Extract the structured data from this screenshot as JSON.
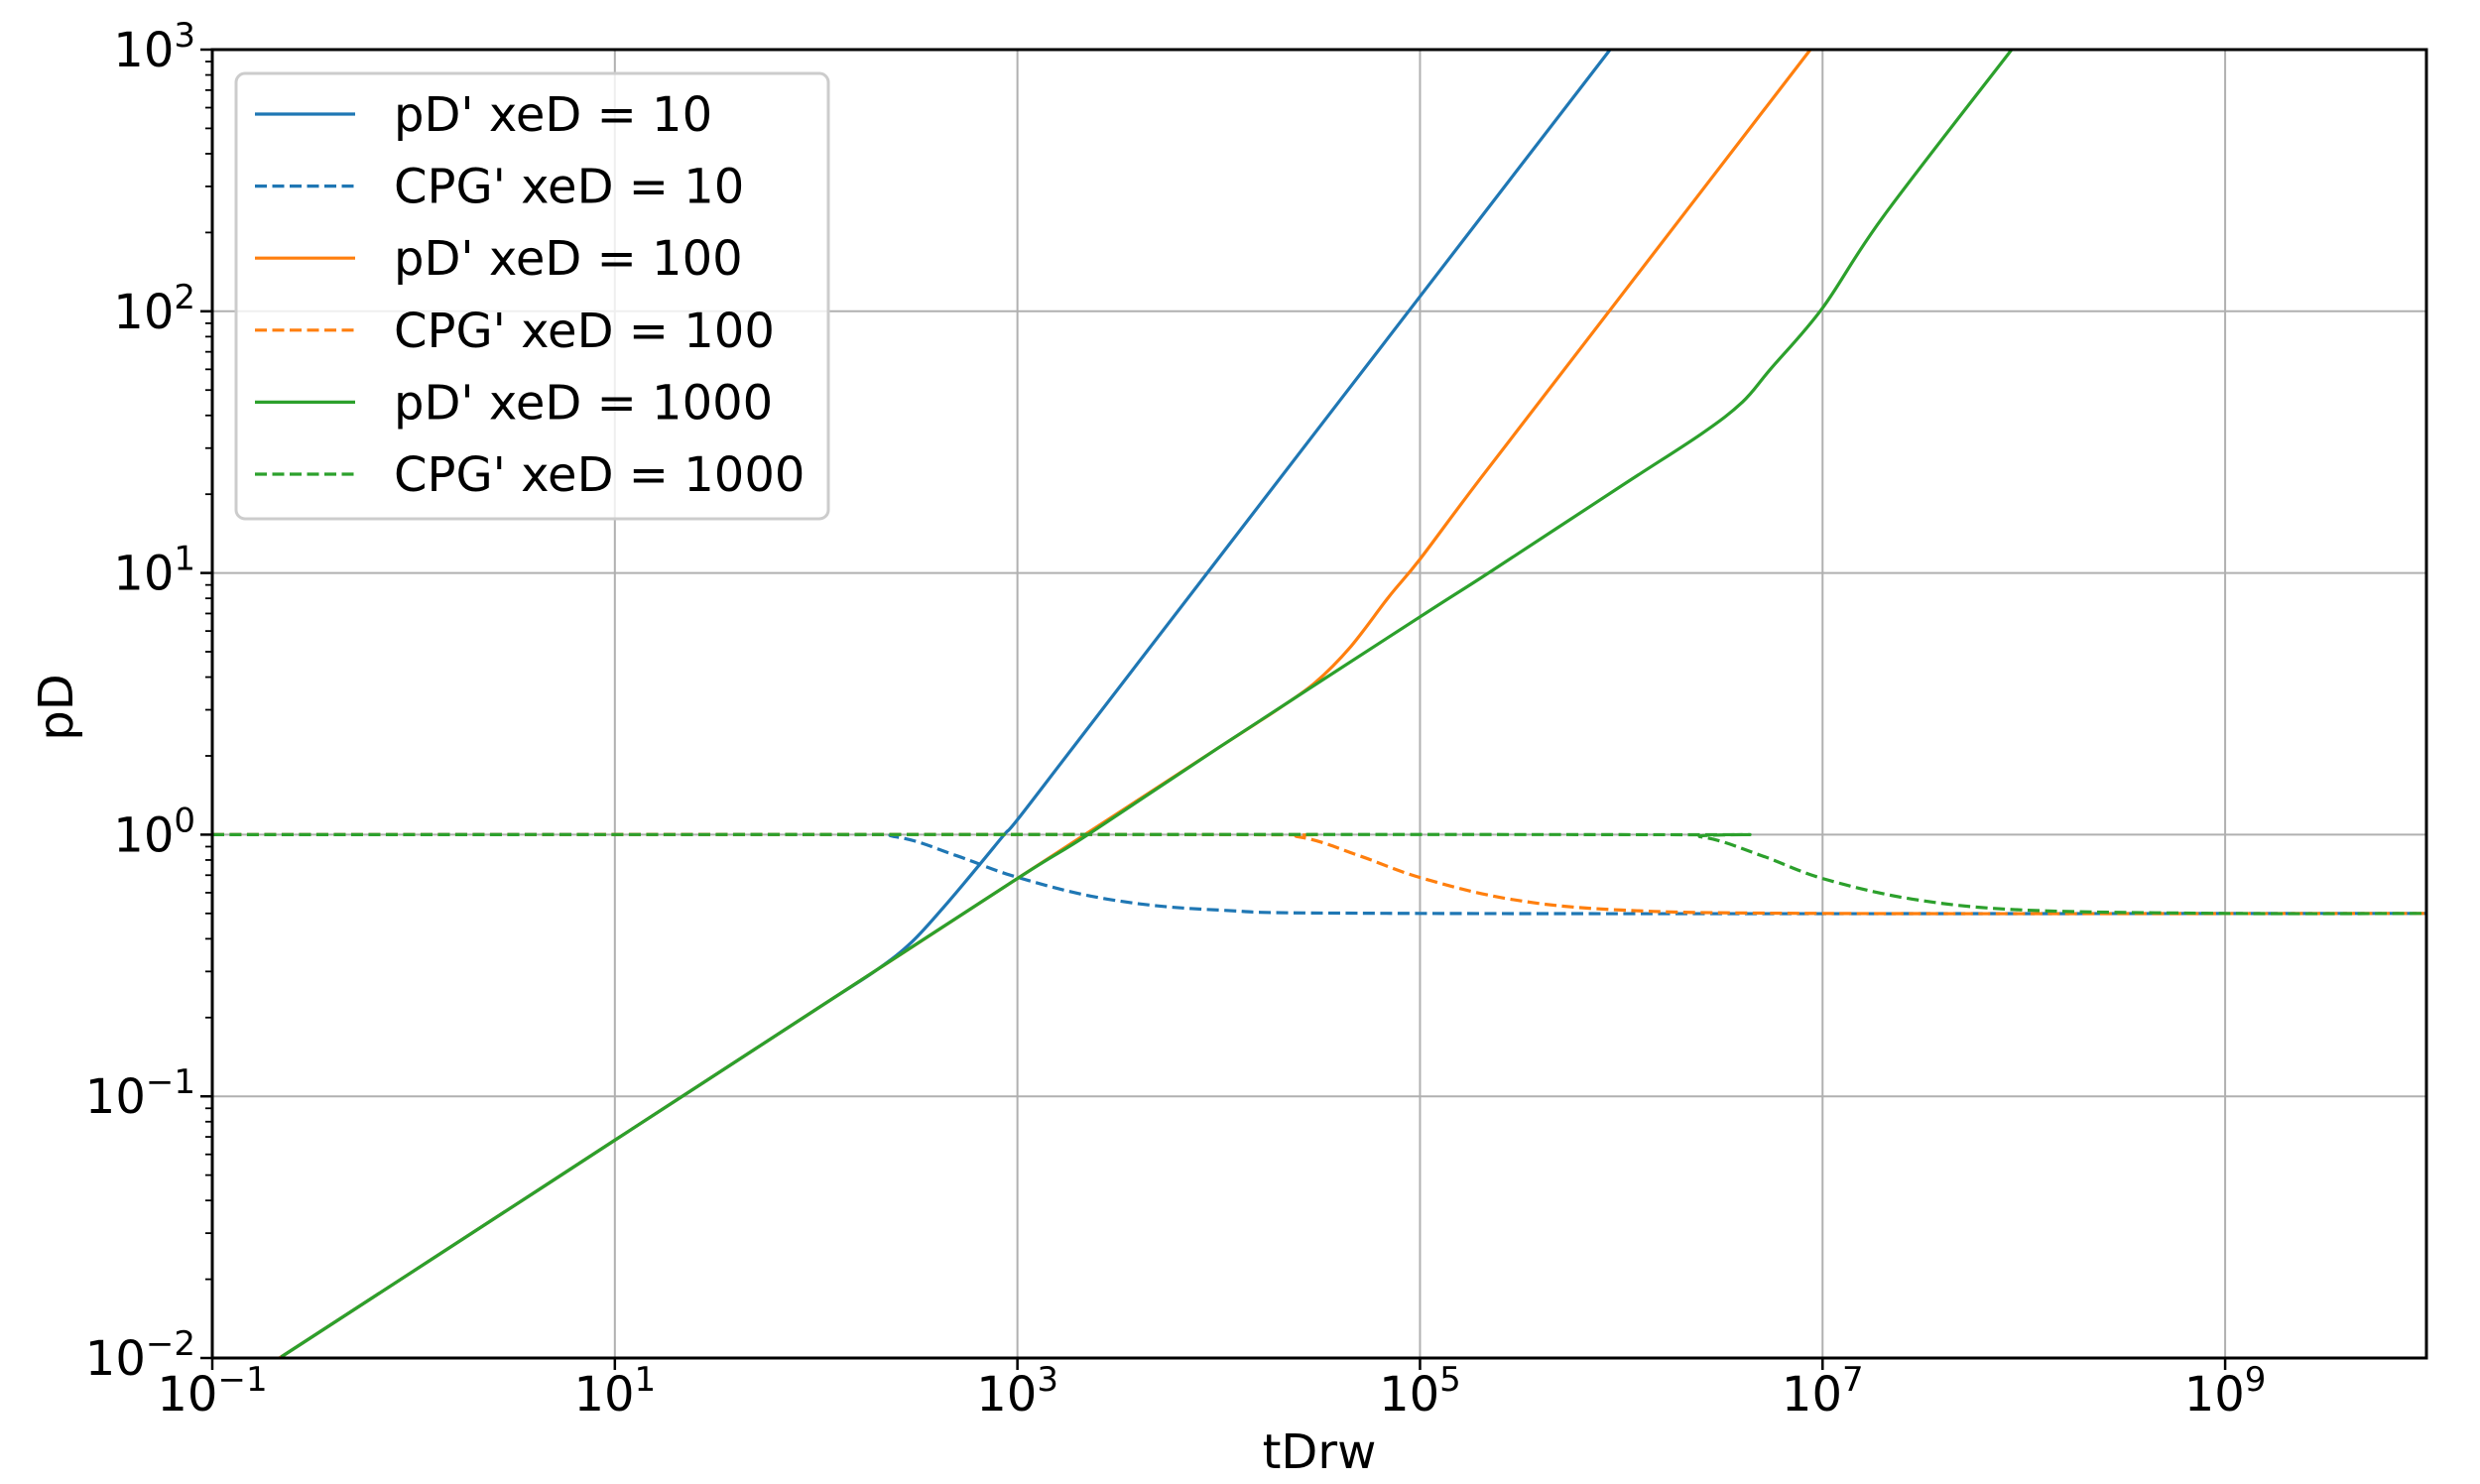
{
  "chart_data": {
    "type": "line",
    "title": "",
    "xlabel": "tDrw",
    "ylabel": "pD",
    "xscale": "log",
    "yscale": "log",
    "xlim": [
      0.1,
      10000000000
    ],
    "ylim": [
      0.01,
      1000
    ],
    "grid": true,
    "legend_position": "upper left",
    "x_ticks": [
      {
        "value": 0.1,
        "base": "10",
        "exp": "−1"
      },
      {
        "value": 10,
        "base": "10",
        "exp": "1"
      },
      {
        "value": 1000,
        "base": "10",
        "exp": "3"
      },
      {
        "value": 100000,
        "base": "10",
        "exp": "5"
      },
      {
        "value": 10000000,
        "base": "10",
        "exp": "7"
      },
      {
        "value": 1000000000,
        "base": "10",
        "exp": "9"
      }
    ],
    "y_ticks": [
      {
        "value": 0.01,
        "base": "10",
        "exp": "−2"
      },
      {
        "value": 0.1,
        "base": "10",
        "exp": "−1"
      },
      {
        "value": 1,
        "base": "10",
        "exp": "0"
      },
      {
        "value": 10,
        "base": "10",
        "exp": "1"
      },
      {
        "value": 100,
        "base": "10",
        "exp": "2"
      },
      {
        "value": 1000,
        "base": "10",
        "exp": "3"
      }
    ],
    "series": [
      {
        "name": "pD' xeD = 10",
        "color": "#1f77b4",
        "style": "solid",
        "points": [
          [
            0.1,
            0.0068
          ],
          [
            0.22,
            0.0101
          ],
          [
            1,
            0.0215
          ],
          [
            10,
            0.068
          ],
          [
            100,
            0.215
          ],
          [
            200,
            0.304
          ],
          [
            300,
            0.39
          ],
          [
            450,
            0.55
          ],
          [
            650,
            0.77
          ],
          [
            860,
            1.0
          ],
          [
            1000,
            1.14
          ],
          [
            2000,
            2.28
          ],
          [
            10000,
            11.4
          ],
          [
            100000,
            114
          ],
          [
            880000,
            1000
          ]
        ]
      },
      {
        "name": "CPG' xeD = 10",
        "color": "#1f77b4",
        "style": "dashed",
        "points": [
          [
            0.1,
            1
          ],
          [
            100,
            1
          ],
          [
            250,
            0.98
          ],
          [
            500,
            0.83
          ],
          [
            1000,
            0.687
          ],
          [
            2800,
            0.567
          ],
          [
            10000,
            0.515
          ],
          [
            100000,
            0.5
          ],
          [
            10000000000,
            0.5
          ]
        ]
      },
      {
        "name": "pD' xeD = 100",
        "color": "#ff7f0e",
        "style": "solid",
        "points": [
          [
            0.1,
            0.0068
          ],
          [
            0.22,
            0.0101
          ],
          [
            1,
            0.0215
          ],
          [
            10,
            0.068
          ],
          [
            100,
            0.215
          ],
          [
            1000,
            0.68
          ],
          [
            10000,
            2.15
          ],
          [
            20000,
            3.04
          ],
          [
            30000,
            3.8
          ],
          [
            45000,
            5.2
          ],
          [
            70000,
            8.1
          ],
          [
            100000,
            11.3
          ],
          [
            200000,
            23
          ],
          [
            1000000,
            115
          ],
          [
            8700000,
            1000
          ]
        ]
      },
      {
        "name": "CPG' xeD = 100",
        "color": "#ff7f0e",
        "style": "dashed",
        "points": [
          [
            0.1,
            1
          ],
          [
            10000,
            1
          ],
          [
            25000,
            0.98
          ],
          [
            50000,
            0.83
          ],
          [
            100000,
            0.686
          ],
          [
            280000,
            0.567
          ],
          [
            1000000,
            0.515
          ],
          [
            10000000,
            0.5
          ],
          [
            10000000000,
            0.5
          ]
        ]
      },
      {
        "name": "pD' xeD = 1000",
        "color": "#2ca02c",
        "style": "solid",
        "points": [
          [
            0.22,
            0.0101
          ],
          [
            1,
            0.0215
          ],
          [
            10,
            0.068
          ],
          [
            100,
            0.215
          ],
          [
            1000,
            0.68
          ],
          [
            2240,
            1.0
          ],
          [
            10000,
            2.15
          ],
          [
            100000,
            6.8
          ],
          [
            219000,
            10
          ],
          [
            1000000,
            21.5
          ],
          [
            2500000,
            34
          ],
          [
            4000000,
            45
          ],
          [
            5500000,
            60
          ],
          [
            10000000,
            103
          ],
          [
            20000000,
            230
          ],
          [
            87000000,
            1000
          ]
        ]
      },
      {
        "name": "CPG' xeD = 1000",
        "color": "#2ca02c",
        "style": "dashed",
        "points": [
          [
            0.1,
            1
          ],
          [
            1000000,
            1
          ],
          [
            2500000,
            0.98
          ],
          [
            5000000,
            0.83
          ],
          [
            10000000,
            0.68
          ],
          [
            28000000,
            0.567
          ],
          [
            100000000,
            0.515
          ],
          [
            1000000000,
            0.5
          ],
          [
            10000000000,
            0.5
          ]
        ]
      }
    ]
  },
  "legend": {
    "items": [
      {
        "label": "pD' xeD = 10",
        "color": "#1f77b4",
        "style": "solid"
      },
      {
        "label": "CPG' xeD = 10",
        "color": "#1f77b4",
        "style": "dashed"
      },
      {
        "label": "pD' xeD = 100",
        "color": "#ff7f0e",
        "style": "solid"
      },
      {
        "label": "CPG' xeD = 100",
        "color": "#ff7f0e",
        "style": "dashed"
      },
      {
        "label": "pD' xeD = 1000",
        "color": "#2ca02c",
        "style": "solid"
      },
      {
        "label": "CPG' xeD = 1000",
        "color": "#2ca02c",
        "style": "dashed"
      }
    ]
  },
  "axes": {
    "xlabel": "tDrw",
    "ylabel": "pD"
  },
  "style": {
    "grid_color": "#b0b0b0",
    "axis_color": "#000000",
    "legend_border": "#cccccc",
    "background": "#ffffff"
  }
}
